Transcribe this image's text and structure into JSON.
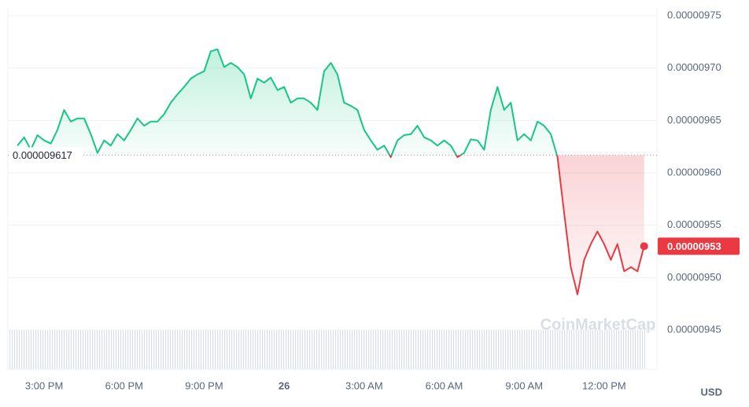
{
  "chart_data": {
    "type": "line",
    "x": [
      14.0,
      14.25,
      14.5,
      14.75,
      15.0,
      15.25,
      15.5,
      15.75,
      16.0,
      16.25,
      16.5,
      16.75,
      17.0,
      17.25,
      17.5,
      17.75,
      18.0,
      18.25,
      18.5,
      18.75,
      19.0,
      19.25,
      19.5,
      19.75,
      20.0,
      20.25,
      20.5,
      20.75,
      21.0,
      21.25,
      21.5,
      21.75,
      22.0,
      22.25,
      22.5,
      22.75,
      23.0,
      23.25,
      23.5,
      23.75,
      24.0,
      24.25,
      24.5,
      24.75,
      25.0,
      25.25,
      25.5,
      25.75,
      26.0,
      26.25,
      26.5,
      26.75,
      27.0,
      27.25,
      27.5,
      27.75,
      28.0,
      28.25,
      28.5,
      28.75,
      29.0,
      29.25,
      29.5,
      29.75,
      30.0,
      30.25,
      30.5,
      30.75,
      31.0,
      31.25,
      31.5,
      31.75,
      32.0,
      32.25,
      32.5,
      32.75,
      33.0,
      33.25,
      33.5,
      33.75,
      34.0,
      34.25,
      34.5,
      34.75,
      35.0,
      35.25,
      35.5,
      35.75,
      36.0,
      36.25,
      36.5,
      36.75,
      37.0,
      37.25,
      37.5
    ],
    "values": [
      9.626e-06,
      9.634e-06,
      9.622e-06,
      9.636e-06,
      9.631e-06,
      9.628e-06,
      9.641e-06,
      9.66e-06,
      9.649e-06,
      9.652e-06,
      9.652e-06,
      9.637e-06,
      9.619e-06,
      9.631e-06,
      9.626e-06,
      9.637e-06,
      9.631e-06,
      9.641e-06,
      9.652e-06,
      9.645e-06,
      9.649e-06,
      9.649e-06,
      9.656e-06,
      9.667e-06,
      9.675e-06,
      9.682e-06,
      9.69e-06,
      9.694e-06,
      9.697e-06,
      9.716e-06,
      9.718e-06,
      9.701e-06,
      9.705e-06,
      9.701e-06,
      9.694e-06,
      9.671e-06,
      9.69e-06,
      9.686e-06,
      9.691e-06,
      9.679e-06,
      9.682e-06,
      9.667e-06,
      9.671e-06,
      9.671e-06,
      9.667e-06,
      9.66e-06,
      9.697e-06,
      9.705e-06,
      9.694e-06,
      9.667e-06,
      9.664e-06,
      9.66e-06,
      9.641e-06,
      9.631e-06,
      9.622e-06,
      9.626e-06,
      9.615e-06,
      9.631e-06,
      9.636e-06,
      9.637e-06,
      9.645e-06,
      9.634e-06,
      9.631e-06,
      9.626e-06,
      9.631e-06,
      9.626e-06,
      9.615e-06,
      9.619e-06,
      9.632e-06,
      9.631e-06,
      9.622e-06,
      9.66e-06,
      9.682e-06,
      9.66e-06,
      9.667e-06,
      9.631e-06,
      9.637e-06,
      9.631e-06,
      9.649e-06,
      9.645e-06,
      9.637e-06,
      9.615e-06,
      9.562e-06,
      9.51e-06,
      9.484e-06,
      9.517e-06,
      9.532e-06,
      9.544e-06,
      9.532e-06,
      9.517e-06,
      9.532e-06,
      9.506e-06,
      9.51e-06,
      9.506e-06,
      9.53e-06
    ],
    "up_color": "#16c784",
    "down_color": "#ea3943",
    "reference_line": 9.617e-06,
    "current_price": 9.53e-06,
    "xlim": [
      13.64,
      37.98
    ],
    "xticks": [
      {
        "value": 15,
        "label": "3:00 PM"
      },
      {
        "value": 18,
        "label": "6:00 PM"
      },
      {
        "value": 21,
        "label": "9:00 PM"
      },
      {
        "value": 24,
        "label": "26"
      },
      {
        "value": 27,
        "label": "3:00 AM"
      },
      {
        "value": 30,
        "label": "6:00 AM"
      },
      {
        "value": 33,
        "label": "9:00 AM"
      },
      {
        "value": 36,
        "label": "12:00 PM"
      }
    ],
    "ylim": [
      9.4125e-06,
      9.7575e-06
    ],
    "yticks": [
      9.45e-06,
      {
        "value": 9.5e-06,
        "label": "0.00000950"
      },
      9.55e-06,
      {
        "value": 9.6e-06,
        "label": "0.00000960"
      },
      9.65e-06,
      {
        "value": 9.7e-06,
        "label": "0.00000970"
      },
      9.75e-06
    ],
    "currency": "USD",
    "watermark": "CoinMarketCap",
    "grid": true
  }
}
